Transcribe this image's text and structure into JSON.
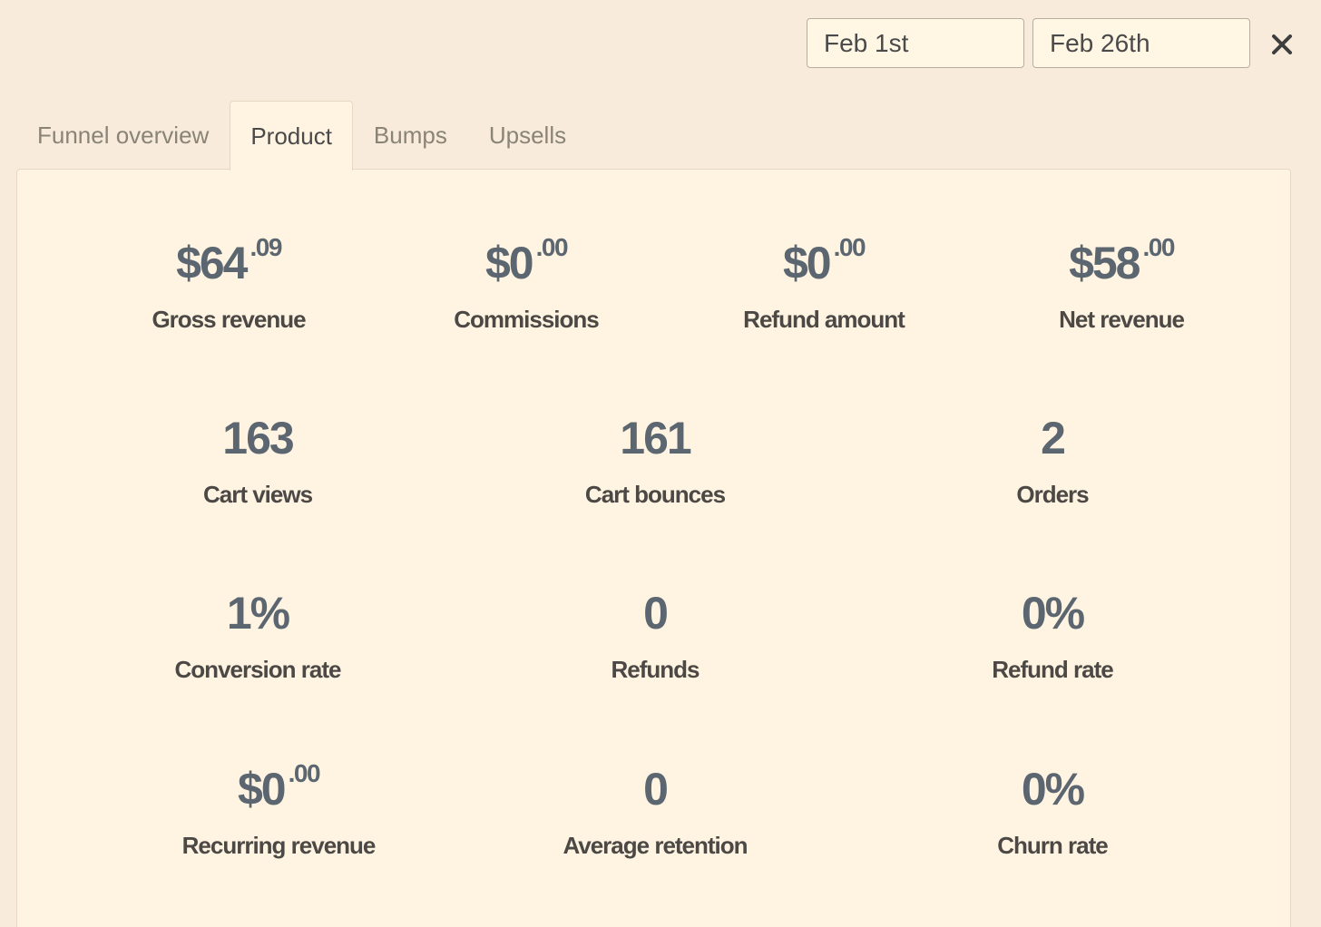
{
  "date_range": {
    "start": "Feb 1st",
    "end": "Feb 26th"
  },
  "close_glyph": "✕",
  "tabs": [
    {
      "label": "Funnel overview",
      "active": false
    },
    {
      "label": "Product",
      "active": true
    },
    {
      "label": "Bumps",
      "active": false
    },
    {
      "label": "Upsells",
      "active": false
    }
  ],
  "stats": {
    "gross_revenue": {
      "value": "$64",
      "cents": ".09",
      "label": "Gross revenue"
    },
    "commissions": {
      "value": "$0",
      "cents": ".00",
      "label": "Commissions"
    },
    "refund_amount": {
      "value": "$0",
      "cents": ".00",
      "label": "Refund amount"
    },
    "net_revenue": {
      "value": "$58",
      "cents": ".00",
      "label": "Net revenue"
    },
    "cart_views": {
      "value": "163",
      "label": "Cart views"
    },
    "cart_bounces": {
      "value": "161",
      "label": "Cart bounces"
    },
    "orders": {
      "value": "2",
      "label": "Orders"
    },
    "conversion_rate": {
      "value": "1%",
      "label": "Conversion rate"
    },
    "refunds": {
      "value": "0",
      "label": "Refunds"
    },
    "refund_rate": {
      "value": "0%",
      "label": "Refund rate"
    },
    "recurring_revenue": {
      "value": "$0",
      "cents": ".00",
      "label": "Recurring revenue"
    },
    "average_retention": {
      "value": "0",
      "label": "Average retention"
    },
    "churn_rate": {
      "value": "0%",
      "label": "Churn rate"
    }
  },
  "colors": {
    "background": "#f8ebdb",
    "panel": "#fff4e1",
    "value_text": "#5c6670",
    "label_text": "#4b4845"
  }
}
